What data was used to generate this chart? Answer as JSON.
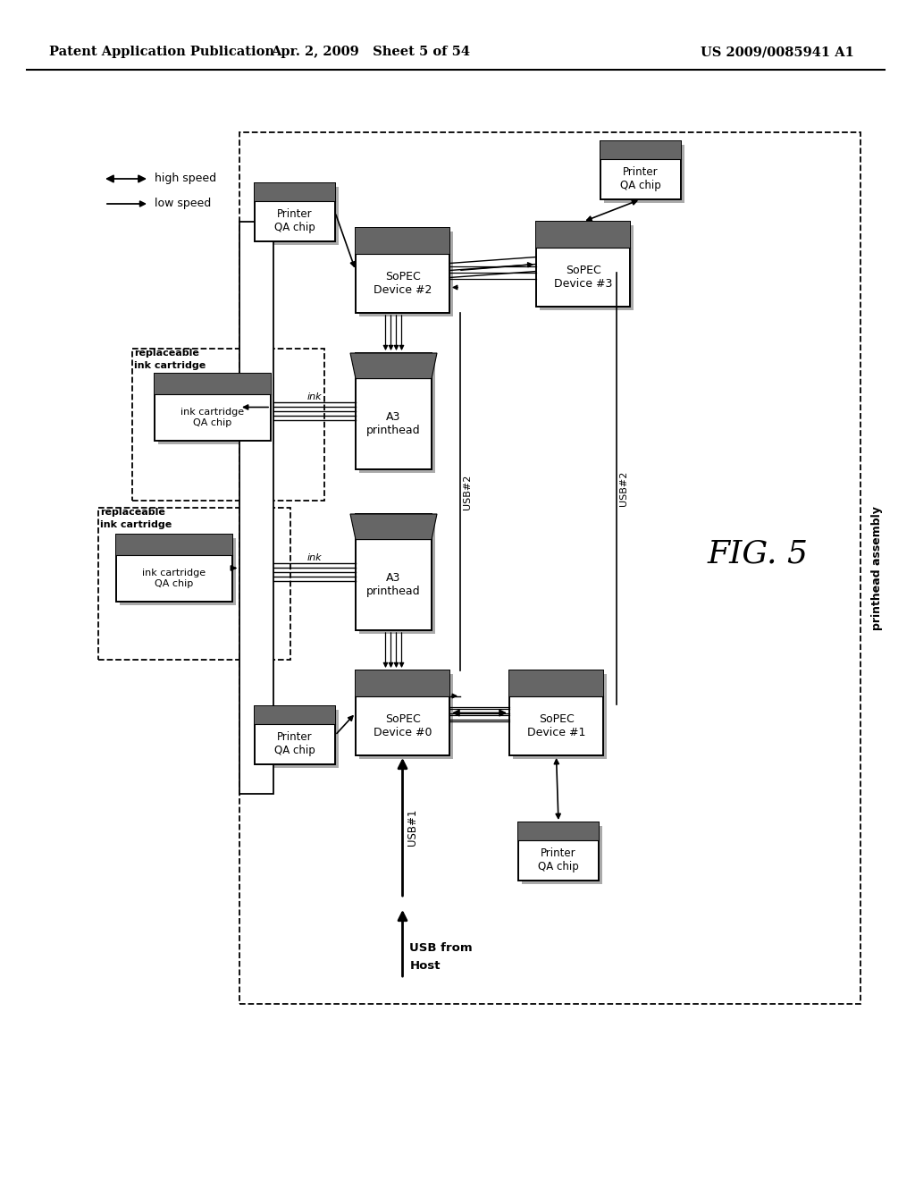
{
  "bg_color": "#ffffff",
  "header_left": "Patent Application Publication",
  "header_mid": "Apr. 2, 2009   Sheet 5 of 54",
  "header_right": "US 2009/0085941 A1",
  "fig_label": "FIG. 5",
  "gray_dark": "#666666",
  "gray_shadow": "#aaaaaa"
}
